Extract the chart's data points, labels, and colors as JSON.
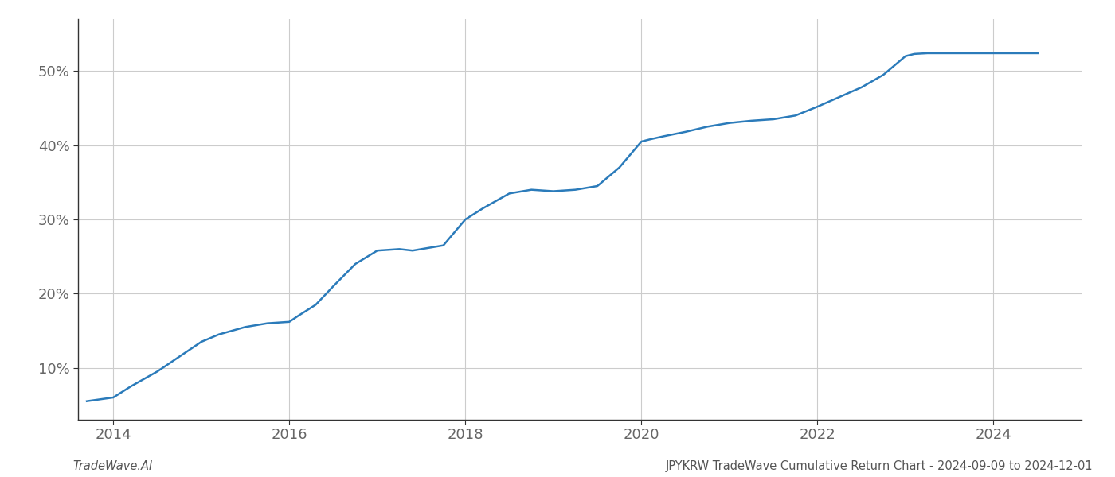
{
  "line_color": "#2b7bba",
  "line_width": 1.8,
  "background_color": "#ffffff",
  "grid_color": "#cccccc",
  "x_data": [
    2013.7,
    2014.0,
    2014.2,
    2014.5,
    2014.75,
    2015.0,
    2015.2,
    2015.5,
    2015.75,
    2016.0,
    2016.1,
    2016.3,
    2016.5,
    2016.75,
    2017.0,
    2017.25,
    2017.4,
    2017.6,
    2017.75,
    2018.0,
    2018.2,
    2018.5,
    2018.75,
    2019.0,
    2019.25,
    2019.5,
    2019.75,
    2020.0,
    2020.1,
    2020.25,
    2020.5,
    2020.75,
    2021.0,
    2021.25,
    2021.5,
    2021.75,
    2022.0,
    2022.25,
    2022.5,
    2022.75,
    2023.0,
    2023.1,
    2023.25,
    2023.5,
    2023.75,
    2024.0,
    2024.5
  ],
  "y_data": [
    5.5,
    6.0,
    7.5,
    9.5,
    11.5,
    13.5,
    14.5,
    15.5,
    16.0,
    16.2,
    17.0,
    18.5,
    21.0,
    24.0,
    25.8,
    26.0,
    25.8,
    26.2,
    26.5,
    30.0,
    31.5,
    33.5,
    34.0,
    33.8,
    34.0,
    34.5,
    37.0,
    40.5,
    40.8,
    41.2,
    41.8,
    42.5,
    43.0,
    43.3,
    43.5,
    44.0,
    45.2,
    46.5,
    47.8,
    49.5,
    52.0,
    52.3,
    52.4,
    52.4,
    52.4,
    52.4,
    52.4
  ],
  "xlim": [
    2013.6,
    2025.0
  ],
  "ylim": [
    3,
    57
  ],
  "yticks": [
    10,
    20,
    30,
    40,
    50
  ],
  "xticks": [
    2014,
    2016,
    2018,
    2020,
    2022,
    2024
  ],
  "footer_left": "TradeWave.AI",
  "footer_right": "JPYKRW TradeWave Cumulative Return Chart - 2024-09-09 to 2024-12-01",
  "footer_fontsize": 10.5,
  "tick_fontsize": 13,
  "grid_linewidth": 0.8,
  "grid_linestyle": "-"
}
